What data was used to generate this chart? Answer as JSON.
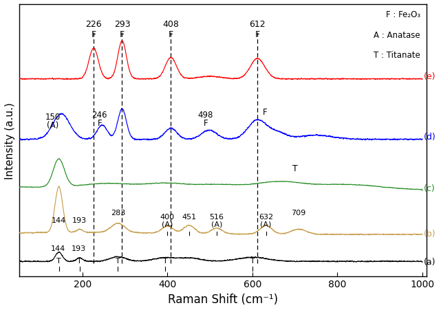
{
  "xlabel": "Raman Shift (cm⁻¹)",
  "ylabel": "Intensity (a.u.)",
  "xlim": [
    50,
    1000
  ],
  "background_color": "#ffffff",
  "legend_text": [
    "F : Fe₂O₃",
    "A : Anatase",
    "T : Titanate"
  ],
  "series_labels": [
    "(a)",
    "(b)",
    "(c)",
    "(d)",
    "(e)"
  ],
  "series_colors": [
    "black",
    "#C8A050",
    "#228B22",
    "blue",
    "red"
  ],
  "offsets": [
    0.0,
    0.55,
    1.4,
    2.4,
    3.6
  ],
  "dashed_lines": [
    226,
    293,
    408,
    612
  ]
}
